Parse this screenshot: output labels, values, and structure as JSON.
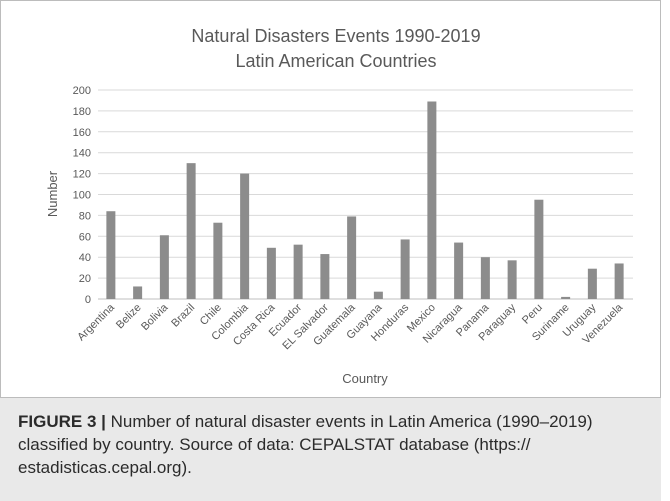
{
  "chart_data": {
    "type": "bar",
    "title_line1": "Natural Disasters Events 1990-2019",
    "title_line2": "Latin American Countries",
    "xlabel": "Country",
    "ylabel": "Number",
    "ylim": [
      0,
      200
    ],
    "yticks": [
      0,
      20,
      40,
      60,
      80,
      100,
      120,
      140,
      160,
      180,
      200
    ],
    "grid": true,
    "bar_color": "#8c8c8c",
    "categories": [
      "Argentina",
      "Belize",
      "Bolivia",
      "Brazil",
      "Chile",
      "Colombia",
      "Costa Rica",
      "Ecuador",
      "EL Salvador",
      "Guatemala",
      "Guayana",
      "Honduras",
      "Mexico",
      "Nicaragua",
      "Panama",
      "Paraguay",
      "Peru",
      "Suriname",
      "Uruguay",
      "Venezuela"
    ],
    "values": [
      84,
      12,
      61,
      130,
      73,
      120,
      49,
      52,
      43,
      79,
      7,
      57,
      189,
      54,
      40,
      37,
      95,
      2,
      29,
      34
    ]
  },
  "caption": {
    "label": "FIGURE 3 |",
    "text": " Number of natural disaster events in Latin America (1990–2019) classified by country. Source of data: CEPALSTAT database (https:// estadisticas.cepal.org)."
  }
}
